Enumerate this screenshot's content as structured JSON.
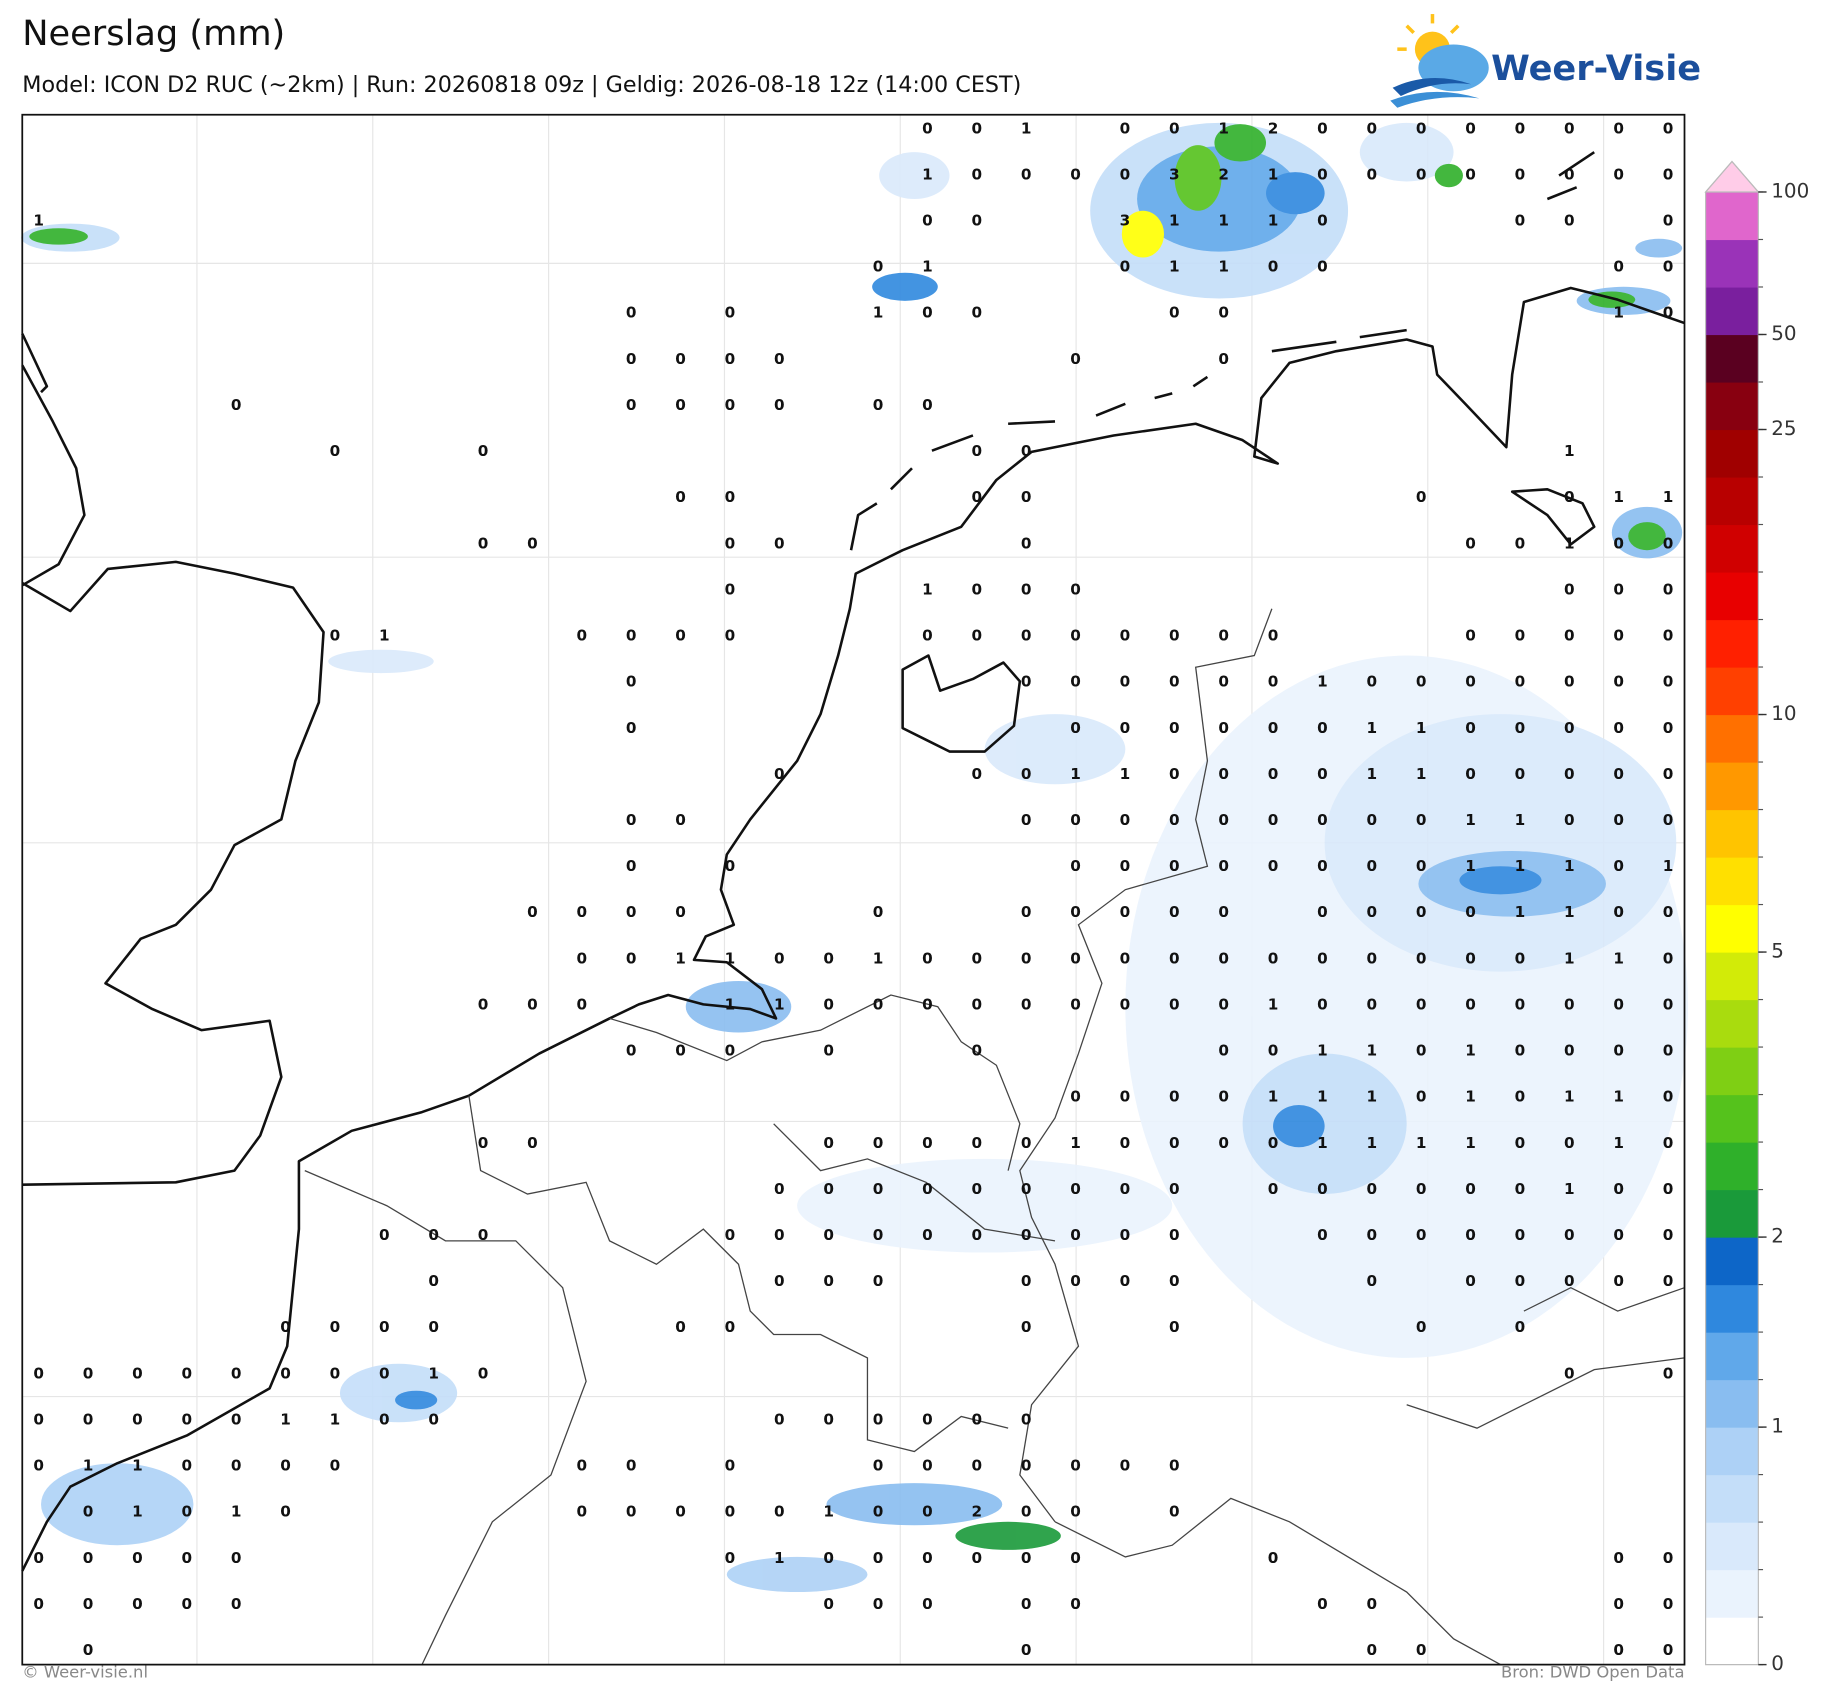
{
  "header": {
    "title": "Neerslag (mm)",
    "subtitle": "Model: ICON D2 RUC (~2km)  |  Run: 20260818 09z  |  Geldig: 2026-08-18 12z (14:00 CEST)",
    "logo": "Weer-Visie"
  },
  "footer": {
    "left": "© Weer-visie.nl",
    "right": "Bron: DWD Open Data"
  },
  "colorbar": {
    "levels": [
      0,
      0.1,
      0.2,
      0.3,
      0.5,
      1,
      1.2,
      1.4,
      1.6,
      2,
      2.5,
      3,
      3.5,
      4,
      4.5,
      5,
      6,
      7,
      8,
      9,
      10,
      12,
      15,
      17.5,
      20,
      22.5,
      25,
      35,
      50,
      60,
      75,
      100
    ],
    "colors": [
      "#ffffff",
      "#eaf3fd",
      "#d9e9fb",
      "#c4def9",
      "#add1f6",
      "#89bdf0",
      "#60a8ea",
      "#2f88de",
      "#0d66c8",
      "#1a9a3a",
      "#2fb02a",
      "#55c21c",
      "#7fcf14",
      "#a9dc0e",
      "#d2eb08",
      "#ffff00",
      "#ffe000",
      "#ffc400",
      "#ff9800",
      "#ff7000",
      "#ff4000",
      "#ff2000",
      "#e80000",
      "#d00000",
      "#b80000",
      "#a00000",
      "#880010",
      "#5a0020",
      "#7a1f9e",
      "#9a33b8",
      "#e066cc"
    ],
    "extend_color": "#ffcce8",
    "ticks": [
      0,
      1,
      2,
      5,
      10,
      25,
      50,
      100
    ]
  },
  "grid": {
    "rows": [
      [
        null,
        null,
        null,
        null,
        null,
        null,
        null,
        null,
        null,
        null,
        null,
        null,
        null,
        null,
        null,
        null,
        null,
        null,
        0,
        0,
        1,
        null,
        0,
        0,
        1,
        2,
        0,
        0,
        0,
        0,
        0,
        0,
        0,
        0
      ],
      [
        null,
        null,
        null,
        null,
        null,
        null,
        null,
        null,
        null,
        null,
        null,
        null,
        null,
        null,
        null,
        null,
        null,
        null,
        1,
        0,
        0,
        0,
        0,
        3,
        2,
        1,
        0,
        0,
        0,
        0,
        0,
        0,
        0,
        0
      ],
      [
        1,
        null,
        null,
        null,
        null,
        null,
        null,
        null,
        null,
        null,
        null,
        null,
        null,
        null,
        null,
        null,
        null,
        null,
        0,
        0,
        null,
        null,
        3,
        1,
        1,
        1,
        0,
        null,
        null,
        null,
        0,
        0,
        null,
        0
      ],
      [
        null,
        null,
        null,
        null,
        null,
        null,
        null,
        null,
        null,
        null,
        null,
        null,
        null,
        null,
        null,
        null,
        null,
        0,
        1,
        null,
        null,
        null,
        0,
        1,
        1,
        0,
        0,
        null,
        null,
        null,
        null,
        null,
        0,
        0
      ],
      [
        null,
        null,
        null,
        null,
        null,
        null,
        null,
        null,
        null,
        null,
        null,
        null,
        0,
        null,
        0,
        null,
        null,
        1,
        0,
        0,
        null,
        null,
        null,
        0,
        0,
        null,
        null,
        null,
        null,
        null,
        null,
        null,
        1,
        0
      ],
      [
        null,
        null,
        null,
        null,
        null,
        null,
        null,
        null,
        null,
        null,
        null,
        null,
        0,
        0,
        0,
        0,
        null,
        null,
        null,
        null,
        null,
        0,
        null,
        null,
        0,
        null,
        null,
        null,
        null,
        null,
        null,
        null,
        null,
        null
      ],
      [
        null,
        null,
        null,
        null,
        0,
        null,
        null,
        null,
        null,
        null,
        null,
        null,
        0,
        0,
        0,
        0,
        null,
        0,
        0,
        null,
        null,
        null,
        null,
        null,
        null,
        null,
        null,
        null,
        null,
        null,
        null,
        null,
        null,
        null
      ],
      [
        null,
        null,
        null,
        null,
        null,
        null,
        0,
        null,
        null,
        0,
        null,
        null,
        null,
        null,
        null,
        null,
        null,
        null,
        null,
        0,
        0,
        null,
        null,
        null,
        null,
        null,
        null,
        null,
        null,
        null,
        null,
        1,
        null,
        null
      ],
      [
        null,
        null,
        null,
        null,
        null,
        null,
        null,
        null,
        null,
        null,
        null,
        null,
        null,
        0,
        0,
        null,
        null,
        null,
        null,
        0,
        0,
        null,
        null,
        null,
        null,
        null,
        null,
        null,
        0,
        null,
        null,
        0,
        1,
        1
      ],
      [
        null,
        null,
        null,
        null,
        null,
        null,
        null,
        null,
        null,
        0,
        0,
        null,
        null,
        null,
        0,
        0,
        null,
        null,
        null,
        null,
        0,
        null,
        null,
        null,
        null,
        null,
        null,
        null,
        null,
        0,
        0,
        1,
        0,
        0
      ],
      [
        null,
        null,
        null,
        null,
        null,
        null,
        null,
        null,
        null,
        null,
        null,
        null,
        null,
        null,
        0,
        null,
        null,
        null,
        1,
        0,
        0,
        0,
        null,
        null,
        null,
        null,
        null,
        null,
        null,
        null,
        null,
        0,
        0,
        0
      ],
      [
        null,
        null,
        null,
        null,
        null,
        null,
        0,
        1,
        null,
        null,
        null,
        0,
        0,
        0,
        0,
        null,
        null,
        null,
        0,
        0,
        0,
        0,
        0,
        0,
        0,
        0,
        null,
        null,
        null,
        0,
        0,
        0,
        0,
        0
      ],
      [
        null,
        null,
        null,
        null,
        null,
        null,
        null,
        null,
        null,
        null,
        null,
        null,
        0,
        null,
        null,
        null,
        null,
        null,
        null,
        null,
        0,
        0,
        0,
        0,
        0,
        0,
        1,
        0,
        0,
        0,
        0,
        0,
        0,
        0
      ],
      [
        null,
        null,
        null,
        null,
        null,
        null,
        null,
        null,
        null,
        null,
        null,
        null,
        0,
        null,
        null,
        null,
        null,
        null,
        null,
        null,
        null,
        0,
        0,
        0,
        0,
        0,
        0,
        1,
        1,
        0,
        0,
        0,
        0,
        0
      ],
      [
        null,
        null,
        null,
        null,
        null,
        null,
        null,
        null,
        null,
        null,
        null,
        null,
        null,
        null,
        null,
        0,
        null,
        null,
        null,
        0,
        0,
        1,
        1,
        0,
        0,
        0,
        0,
        1,
        1,
        0,
        0,
        0,
        0,
        0
      ],
      [
        null,
        null,
        null,
        null,
        null,
        null,
        null,
        null,
        null,
        null,
        null,
        null,
        0,
        0,
        null,
        null,
        null,
        null,
        null,
        null,
        0,
        0,
        0,
        0,
        0,
        0,
        0,
        0,
        0,
        1,
        1,
        0,
        0,
        0
      ],
      [
        null,
        null,
        null,
        null,
        null,
        null,
        null,
        null,
        null,
        null,
        null,
        null,
        0,
        null,
        0,
        null,
        null,
        null,
        null,
        null,
        null,
        0,
        0,
        0,
        0,
        0,
        0,
        0,
        0,
        1,
        1,
        1,
        0,
        1
      ],
      [
        null,
        null,
        null,
        null,
        null,
        null,
        null,
        null,
        null,
        null,
        0,
        0,
        0,
        0,
        null,
        null,
        null,
        0,
        null,
        null,
        0,
        0,
        0,
        0,
        0,
        null,
        0,
        0,
        0,
        0,
        1,
        1,
        0,
        0
      ],
      [
        null,
        null,
        null,
        null,
        null,
        null,
        null,
        null,
        null,
        null,
        null,
        0,
        0,
        1,
        1,
        0,
        0,
        1,
        0,
        0,
        0,
        0,
        0,
        0,
        0,
        0,
        0,
        0,
        0,
        0,
        0,
        1,
        1,
        0
      ],
      [
        null,
        null,
        null,
        null,
        null,
        null,
        null,
        null,
        null,
        0,
        0,
        0,
        null,
        null,
        1,
        1,
        0,
        0,
        0,
        0,
        0,
        0,
        0,
        0,
        0,
        1,
        0,
        0,
        0,
        0,
        0,
        0,
        0,
        0
      ],
      [
        null,
        null,
        null,
        null,
        null,
        null,
        null,
        null,
        null,
        null,
        null,
        null,
        0,
        0,
        0,
        null,
        0,
        null,
        null,
        0,
        null,
        null,
        null,
        null,
        0,
        0,
        1,
        1,
        0,
        1,
        0,
        0,
        0,
        0
      ],
      [
        null,
        null,
        null,
        null,
        null,
        null,
        null,
        null,
        null,
        null,
        null,
        null,
        null,
        null,
        null,
        null,
        null,
        null,
        null,
        null,
        null,
        0,
        0,
        0,
        0,
        1,
        1,
        1,
        0,
        1,
        0,
        1,
        1,
        0
      ],
      [
        null,
        null,
        null,
        null,
        null,
        null,
        null,
        null,
        null,
        0,
        0,
        null,
        null,
        null,
        null,
        null,
        0,
        0,
        0,
        0,
        0,
        1,
        0,
        0,
        0,
        0,
        1,
        1,
        1,
        1,
        0,
        0,
        1,
        0
      ],
      [
        null,
        null,
        null,
        null,
        null,
        null,
        null,
        null,
        null,
        null,
        null,
        null,
        null,
        null,
        null,
        0,
        0,
        0,
        0,
        0,
        0,
        0,
        0,
        0,
        null,
        0,
        0,
        0,
        0,
        0,
        0,
        1,
        0,
        0
      ],
      [
        null,
        null,
        null,
        null,
        null,
        null,
        null,
        0,
        0,
        0,
        null,
        null,
        null,
        null,
        0,
        0,
        0,
        0,
        0,
        0,
        0,
        0,
        0,
        0,
        null,
        null,
        0,
        0,
        0,
        0,
        0,
        0,
        0,
        0
      ],
      [
        null,
        null,
        null,
        null,
        null,
        null,
        null,
        null,
        0,
        null,
        null,
        null,
        null,
        null,
        null,
        0,
        0,
        0,
        null,
        null,
        0,
        0,
        0,
        0,
        null,
        null,
        null,
        0,
        null,
        0,
        0,
        0,
        0,
        0
      ],
      [
        null,
        null,
        null,
        null,
        null,
        0,
        0,
        0,
        0,
        null,
        null,
        null,
        null,
        0,
        0,
        null,
        null,
        null,
        null,
        null,
        0,
        null,
        null,
        0,
        null,
        null,
        null,
        null,
        0,
        null,
        0,
        null,
        null,
        null
      ],
      [
        0,
        0,
        0,
        0,
        0,
        0,
        0,
        0,
        1,
        0,
        null,
        null,
        null,
        null,
        null,
        null,
        null,
        null,
        null,
        null,
        null,
        null,
        null,
        null,
        null,
        null,
        null,
        null,
        null,
        null,
        null,
        0,
        null,
        0
      ],
      [
        0,
        0,
        0,
        0,
        0,
        1,
        1,
        0,
        0,
        null,
        null,
        null,
        null,
        null,
        null,
        0,
        0,
        0,
        0,
        0,
        0,
        null,
        null,
        null,
        null,
        null,
        null,
        null,
        null,
        null,
        null,
        null,
        null,
        null
      ],
      [
        0,
        1,
        1,
        0,
        0,
        0,
        0,
        null,
        null,
        null,
        null,
        0,
        0,
        null,
        0,
        null,
        null,
        0,
        0,
        0,
        0,
        0,
        0,
        0,
        null,
        null,
        null,
        null,
        null,
        null,
        null,
        null,
        null,
        null
      ],
      [
        null,
        0,
        1,
        0,
        1,
        0,
        null,
        null,
        null,
        null,
        null,
        0,
        0,
        0,
        0,
        0,
        1,
        0,
        0,
        2,
        0,
        0,
        null,
        0,
        null,
        null,
        null,
        null,
        null,
        null,
        null,
        null,
        null,
        null
      ],
      [
        0,
        0,
        0,
        0,
        0,
        null,
        null,
        null,
        null,
        null,
        null,
        null,
        null,
        null,
        0,
        1,
        0,
        0,
        0,
        0,
        0,
        0,
        null,
        null,
        null,
        0,
        null,
        null,
        null,
        null,
        null,
        null,
        0,
        0
      ],
      [
        0,
        0,
        0,
        0,
        0,
        null,
        null,
        null,
        null,
        null,
        null,
        null,
        null,
        null,
        null,
        null,
        0,
        0,
        0,
        null,
        0,
        0,
        null,
        null,
        null,
        null,
        0,
        0,
        null,
        null,
        null,
        null,
        0,
        0
      ],
      [
        null,
        0,
        null,
        null,
        null,
        null,
        null,
        null,
        null,
        null,
        null,
        null,
        null,
        null,
        null,
        null,
        null,
        null,
        null,
        null,
        0,
        null,
        null,
        null,
        null,
        null,
        null,
        0,
        0,
        null,
        null,
        null,
        0,
        0
      ]
    ]
  }
}
